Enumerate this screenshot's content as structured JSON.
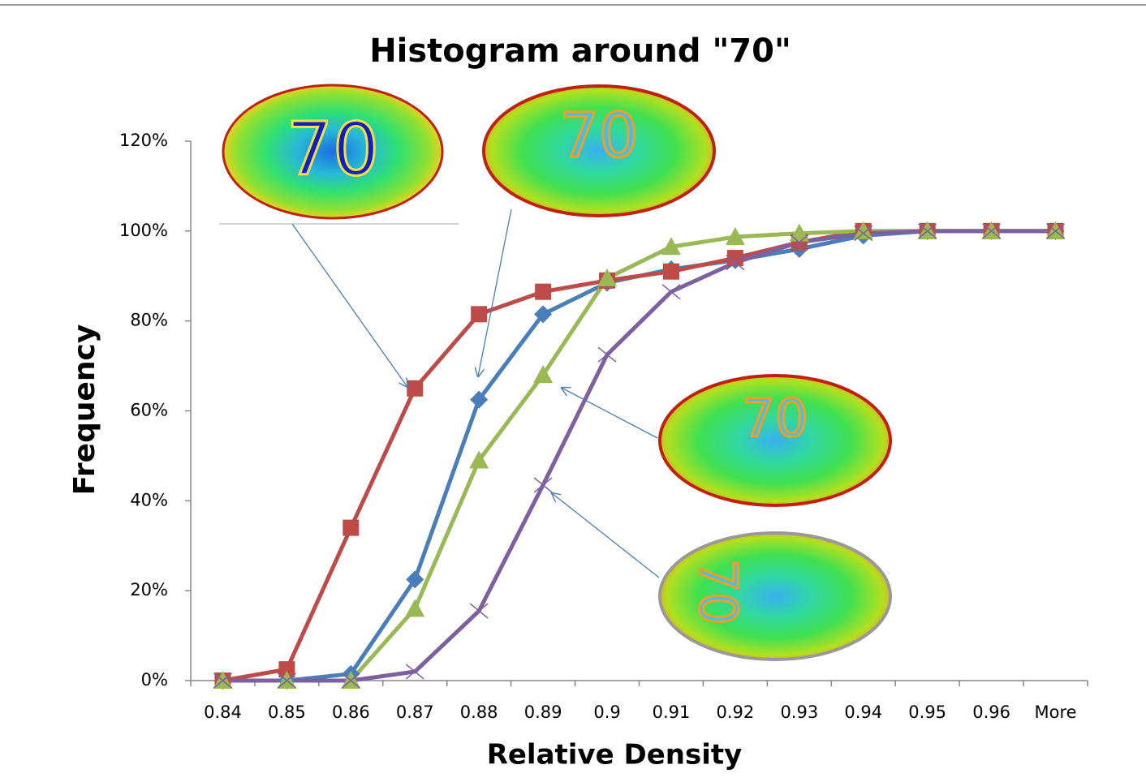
{
  "chart_data": {
    "type": "line",
    "title": "Histogram around \"70\"",
    "x_label": "Relative Density",
    "y_label": "Frequency",
    "categories": [
      "0.84",
      "0.85",
      "0.86",
      "0.87",
      "0.88",
      "0.89",
      "0.9",
      "0.91",
      "0.92",
      "0.93",
      "0.94",
      "0.95",
      "0.96",
      "More"
    ],
    "series": [
      {
        "color": "#4a7ebb",
        "marker": "diamond",
        "values": [
          0,
          0,
          1.5,
          22.5,
          62.5,
          81.5,
          88.5,
          91.5,
          93.5,
          96,
          99,
          100,
          100,
          100
        ]
      },
      {
        "color": "#be4b48",
        "marker": "square",
        "values": [
          0,
          2.5,
          34,
          65,
          81.5,
          86.5,
          89,
          91,
          94,
          97.5,
          100,
          100,
          100,
          100
        ]
      },
      {
        "color": "#98b954",
        "marker": "triangle",
        "values": [
          0,
          0,
          0,
          16,
          49,
          68,
          89.5,
          96.5,
          98.7,
          99.5,
          100,
          100,
          100,
          100
        ]
      },
      {
        "color": "#7d60a0",
        "marker": "x",
        "values": [
          0,
          0,
          0,
          2,
          15.5,
          43.5,
          72.5,
          86.5,
          93,
          97.5,
          99.5,
          100,
          100,
          100
        ]
      }
    ],
    "ylim": [
      0,
      120
    ],
    "yticks": [
      {
        "value": 0,
        "label": "0%"
      },
      {
        "value": 20,
        "label": "20%"
      },
      {
        "value": 40,
        "label": "40%"
      },
      {
        "value": 60,
        "label": "60%"
      },
      {
        "value": 80,
        "label": "80%"
      },
      {
        "value": 100,
        "label": "100%"
      },
      {
        "value": 120,
        "label": "120%"
      }
    ],
    "grid": false,
    "annotations": [
      "70",
      "70",
      "70",
      "70"
    ]
  }
}
